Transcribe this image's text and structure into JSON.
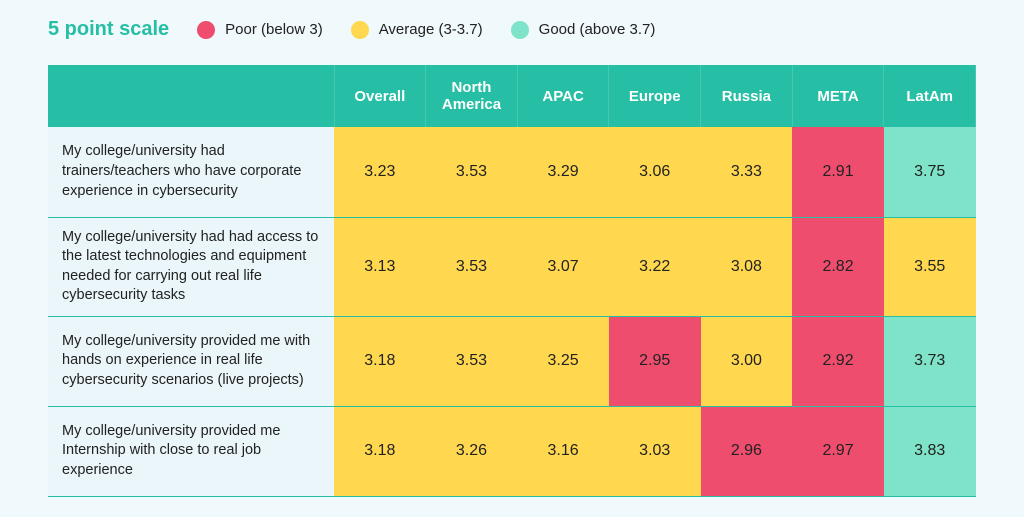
{
  "title": "5 point scale",
  "colors": {
    "poor": "#ef4d6e",
    "average": "#ffd84f",
    "good": "#7fe3c9",
    "header_bg": "#26bfa6",
    "header_text": "#ffffff",
    "desc_bg": "#eaf6fa",
    "border": "#26bfa6",
    "page_bg": "#f0f9fb",
    "text": "#222222"
  },
  "thresholds": {
    "poor_below": 3.0,
    "good_above": 3.7
  },
  "legend": [
    {
      "key": "poor",
      "label": "Poor (below 3)"
    },
    {
      "key": "average",
      "label": "Average (3-3.7)"
    },
    {
      "key": "good",
      "label": "Good (above 3.7)"
    }
  ],
  "columns": [
    "",
    "Overall",
    "North America",
    "APAC",
    "Europe",
    "Russia",
    "META",
    "LatAm"
  ],
  "rows": [
    {
      "desc": "My college/university had trainers/teachers who have corporate experience in cybersecurity",
      "values": [
        3.23,
        3.53,
        3.29,
        3.06,
        3.33,
        2.91,
        3.75
      ]
    },
    {
      "desc": "My college/university had had access to the latest technologies and equipment needed for carrying out real life cybersecurity tasks",
      "values": [
        3.13,
        3.53,
        3.07,
        3.22,
        3.08,
        2.82,
        3.55
      ]
    },
    {
      "desc": "My college/university provided me with hands on experience in real life cybersecurity scenarios (live projects)",
      "values": [
        3.18,
        3.53,
        3.25,
        2.95,
        3.0,
        2.92,
        3.73
      ]
    },
    {
      "desc": "My college/university provided me Internship with close to real job experience",
      "values": [
        3.18,
        3.26,
        3.16,
        3.03,
        2.96,
        2.97,
        3.83
      ]
    }
  ],
  "fontsize": {
    "title": 20,
    "legend": 15,
    "header": 15,
    "cell": 16,
    "desc": 14.5
  }
}
